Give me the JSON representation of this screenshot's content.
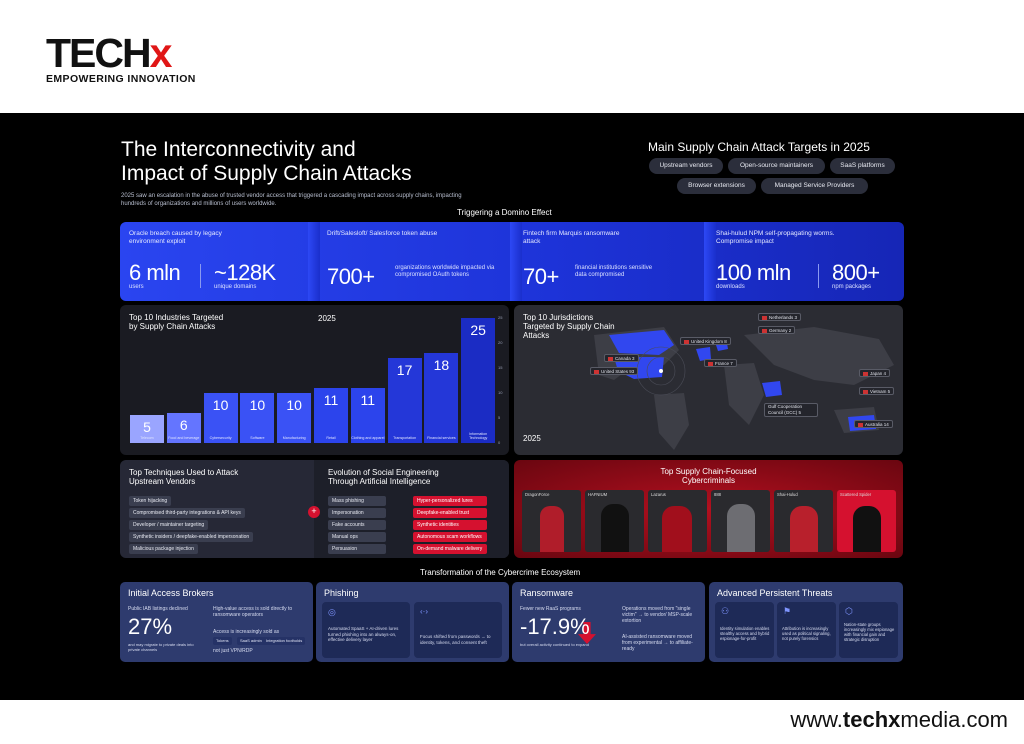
{
  "logo": {
    "brand": "TECH",
    "brand_x": "x",
    "tagline": "EMPOWERING INNOVATION"
  },
  "footer": {
    "site_pre": "www.",
    "site_bold": "techx",
    "site_post": "media.com"
  },
  "header": {
    "title_line1": "The Interconnectivity and",
    "title_line2": "Impact of Supply Chain Attacks",
    "intro": "2025 saw an escalation in the abuse of trusted vendor access that triggered a cascading impact across supply chains, impacting hundreds of organizations and millions of users worldwide."
  },
  "targets": {
    "title": "Main Supply Chain Attack Targets in 2025",
    "items": [
      "Upstream vendors",
      "Open-source maintainers",
      "SaaS platforms",
      "Browser extensions",
      "Managed Service Providers"
    ]
  },
  "domino": {
    "title": "Triggering a Domino Effect",
    "oracle": {
      "caption": "Oracle breach caused by legacy environment exploit",
      "v1": "6 mln",
      "l1": "users",
      "v2": "~128K",
      "l2": "unique domains"
    },
    "drift": {
      "caption": "Drift/Salesloft/ Salesforce token abuse",
      "v1": "700+",
      "l1": "organizations worldwide impacted via compromised OAuth tokens"
    },
    "fintech": {
      "caption": "Fintech firm Marquis ransomware attack",
      "v1": "70+",
      "l1": "financial institutions sensitive data compromised"
    },
    "shai": {
      "caption": "Shai-hulud NPM self-propagating worms. Compromise impact",
      "v1": "100 mln",
      "l1": "downloads",
      "v2": "800+",
      "l2": "npm packages"
    }
  },
  "industries": {
    "title_line1": "Top 10 Industries Targeted",
    "title_line2": "by Supply Chain Attacks",
    "year": "2025",
    "bars": [
      {
        "label": "Telecom",
        "value": 5
      },
      {
        "label": "Food and beverage",
        "value": 6
      },
      {
        "label": "Cybersecurity",
        "value": 10
      },
      {
        "label": "Software",
        "value": 10
      },
      {
        "label": "Manufacturing",
        "value": 10
      },
      {
        "label": "Retail",
        "value": 11
      },
      {
        "label": "Clothing and apparel",
        "value": 11
      },
      {
        "label": "Transportation",
        "value": 17
      },
      {
        "label": "Financial services",
        "value": 18
      },
      {
        "label": "Information Technology",
        "value": 25
      }
    ],
    "axis": [
      "25",
      "20",
      "15",
      "10",
      "5",
      "0"
    ]
  },
  "jurisdictions": {
    "title_line1": "Top 10 Jurisdictions",
    "title_line2": "Targeted by Supply Chain",
    "title_line3": "Attacks",
    "year": "2025",
    "tags": [
      "Netherlands 3",
      "Germany 2",
      "United Kingdom 8",
      "France 7",
      "Canada 3",
      "United States 93",
      "Japan 4",
      "Vietnam 5",
      "Gulf Cooperation Council (GCC) 5",
      "Australia 14"
    ]
  },
  "techniques": {
    "title_line1": "Top Techniques Used to Attack",
    "title_line2": "Upstream Vendors",
    "items": [
      "Token hijacking",
      "Compromised third-party integrations & API keys",
      "Developer / maintainer targeting",
      "Synthetic insiders / deepfake-enabled impersonation",
      "Malicious package injection"
    ]
  },
  "evolution": {
    "title_line1": "Evolution of Social Engineering",
    "title_line2": "Through Artificial Intelligence",
    "plus": "+",
    "left": [
      "Mass phishing",
      "Impersonation",
      "Fake accounts",
      "Manual ops",
      "Persuasion"
    ],
    "right": [
      "Hyper-personalized lures",
      "Deepfake-enabled trust attacks",
      "Synthetic identities",
      "Autonomous scam workflows",
      "On-demand malware delivery"
    ]
  },
  "criminals": {
    "title_line1": "Top Supply Chain-Focused",
    "title_line2": "Cybercriminals",
    "items": [
      "DragonForce",
      "HAFNIUM",
      "Lazarus",
      "888",
      "Shai-Hulud",
      "Scattered Spider"
    ]
  },
  "transformation": {
    "title": "Transformation of the Cybercrime Ecosystem"
  },
  "iab": {
    "title": "Initial Access Brokers",
    "caption": "Public IAB listings declined",
    "value": "27%",
    "foot": "and may migrate to private deals into private channels",
    "right1": "High-value access is sold directly to ransomware operators",
    "right2": "Access is increasingly sold as",
    "badges": [
      "Tokens",
      "SaaS admin",
      "Integration footholds"
    ],
    "right3": "not just VPN/RDP"
  },
  "phishing": {
    "title": "Phishing",
    "c1": "Automated SpaaS + AI-driven lures turned phishing into an always-on, effective delivery layer",
    "c2": "Focus shifted from passwords → to identity, tokens, and consent theft"
  },
  "ransomware": {
    "title": "Ransomware",
    "caption": "Fewer new RaaS programs",
    "value": "-17.9%",
    "foot": "but overall activity continued to expand",
    "r1": "Operations moved from \"single victim\" → to vendor/ MSP-scale extortion",
    "r2": "AI-assisted ransomware moved from experimental → to affiliate-ready"
  },
  "apt": {
    "title": "Advanced Persistent Threats",
    "c1": "Identity simulation enables stealthy access and hybrid espionage-for-profit",
    "c2": "Attribution is increasingly used as political signaling, not purely forensics",
    "c3": "Nation-state groups increasingly mix espionage with financial gain and strategic disruption"
  },
  "colors": {
    "accent_blue": "#2f46ee",
    "accent_red": "#d5112f",
    "brand_red": "#e01616"
  }
}
